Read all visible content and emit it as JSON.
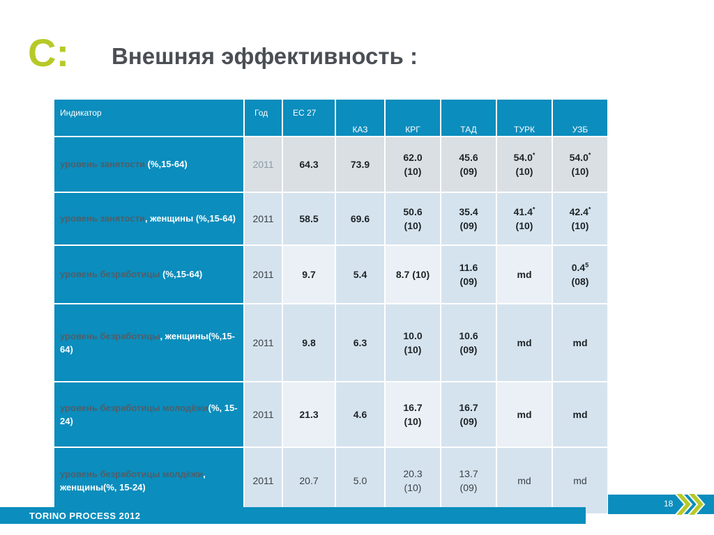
{
  "slide": {
    "letter": "C:",
    "title": "Внешняя эффективность :",
    "footer": "TORINO PROCESS 2012",
    "page_number": "18",
    "accent_color": "#b7c928",
    "brand_color": "#0b8dbd"
  },
  "table": {
    "headers": [
      "Индикатор",
      "Год",
      "ЕС 27",
      "КАЗ",
      "КРГ",
      "ТАД",
      "ТУРК",
      "УЗБ"
    ],
    "rows": [
      {
        "ind_a": "уровень занятости",
        "ind_b": " (%,15-64)",
        "year": "2011",
        "eu": "64.3",
        "kaz": "73.9",
        "krg": "62.0",
        "krg2": "(10)",
        "tad": "45.6",
        "tad2": "(09)",
        "turk": "54.0",
        "turk_sup": "*",
        "turk2": "(10)",
        "uzb": "54.0",
        "uzb_sup": "*",
        "uzb2": "(10)"
      },
      {
        "ind_a": "уровень занятости",
        "ind_b": ", женщины (%,15-64)",
        "year": "2011",
        "eu": "58.5",
        "kaz": "69.6",
        "krg": "50.6",
        "krg2": "(10)",
        "tad": "35.4",
        "tad2": "(09)",
        "turk": "41.4",
        "turk_sup": "*",
        "turk2": "(10)",
        "uzb": "42.4",
        "uzb_sup": "*",
        "uzb2": "(10)"
      },
      {
        "ind_a": "уровень безработицы",
        "ind_b": " (%,15-64)",
        "year": "2011",
        "eu": "9.7",
        "kaz": "5.4",
        "krg": "8.7 (10)",
        "tad": "11.6",
        "tad2": "(09)",
        "turk": "md",
        "uzb": "0.4",
        "uzb_sup": "5",
        "uzb2": "(08)"
      },
      {
        "ind_a": "уровень безработицы",
        "ind_b": ", женщины(%,15-64)",
        "year": "2011",
        "eu": "9.8",
        "kaz": "6.3",
        "krg": "10.0",
        "krg2": "(10)",
        "tad": "10.6",
        "tad2": "(09)",
        "turk": "md",
        "uzb": "md"
      },
      {
        "ind_a": "уровень безработицы молодёжи",
        "ind_b": "(%, 15-24)",
        "year": "2011",
        "eu": "21.3",
        "kaz": "4.6",
        "krg": "16.7",
        "krg2": "(10)",
        "tad": "16.7",
        "tad2": "(09)",
        "turk": "md",
        "uzb": "md"
      },
      {
        "ind_a": "уровень безработицы молдёжи",
        "ind_b": ", женщины(%, 15-24)",
        "year": "2011",
        "eu": "20.7",
        "kaz": "5.0",
        "krg": "20.3",
        "krg2": "(10)",
        "tad": "13.7",
        "tad2": "(09)",
        "turk": "md",
        "uzb": "md"
      }
    ]
  }
}
